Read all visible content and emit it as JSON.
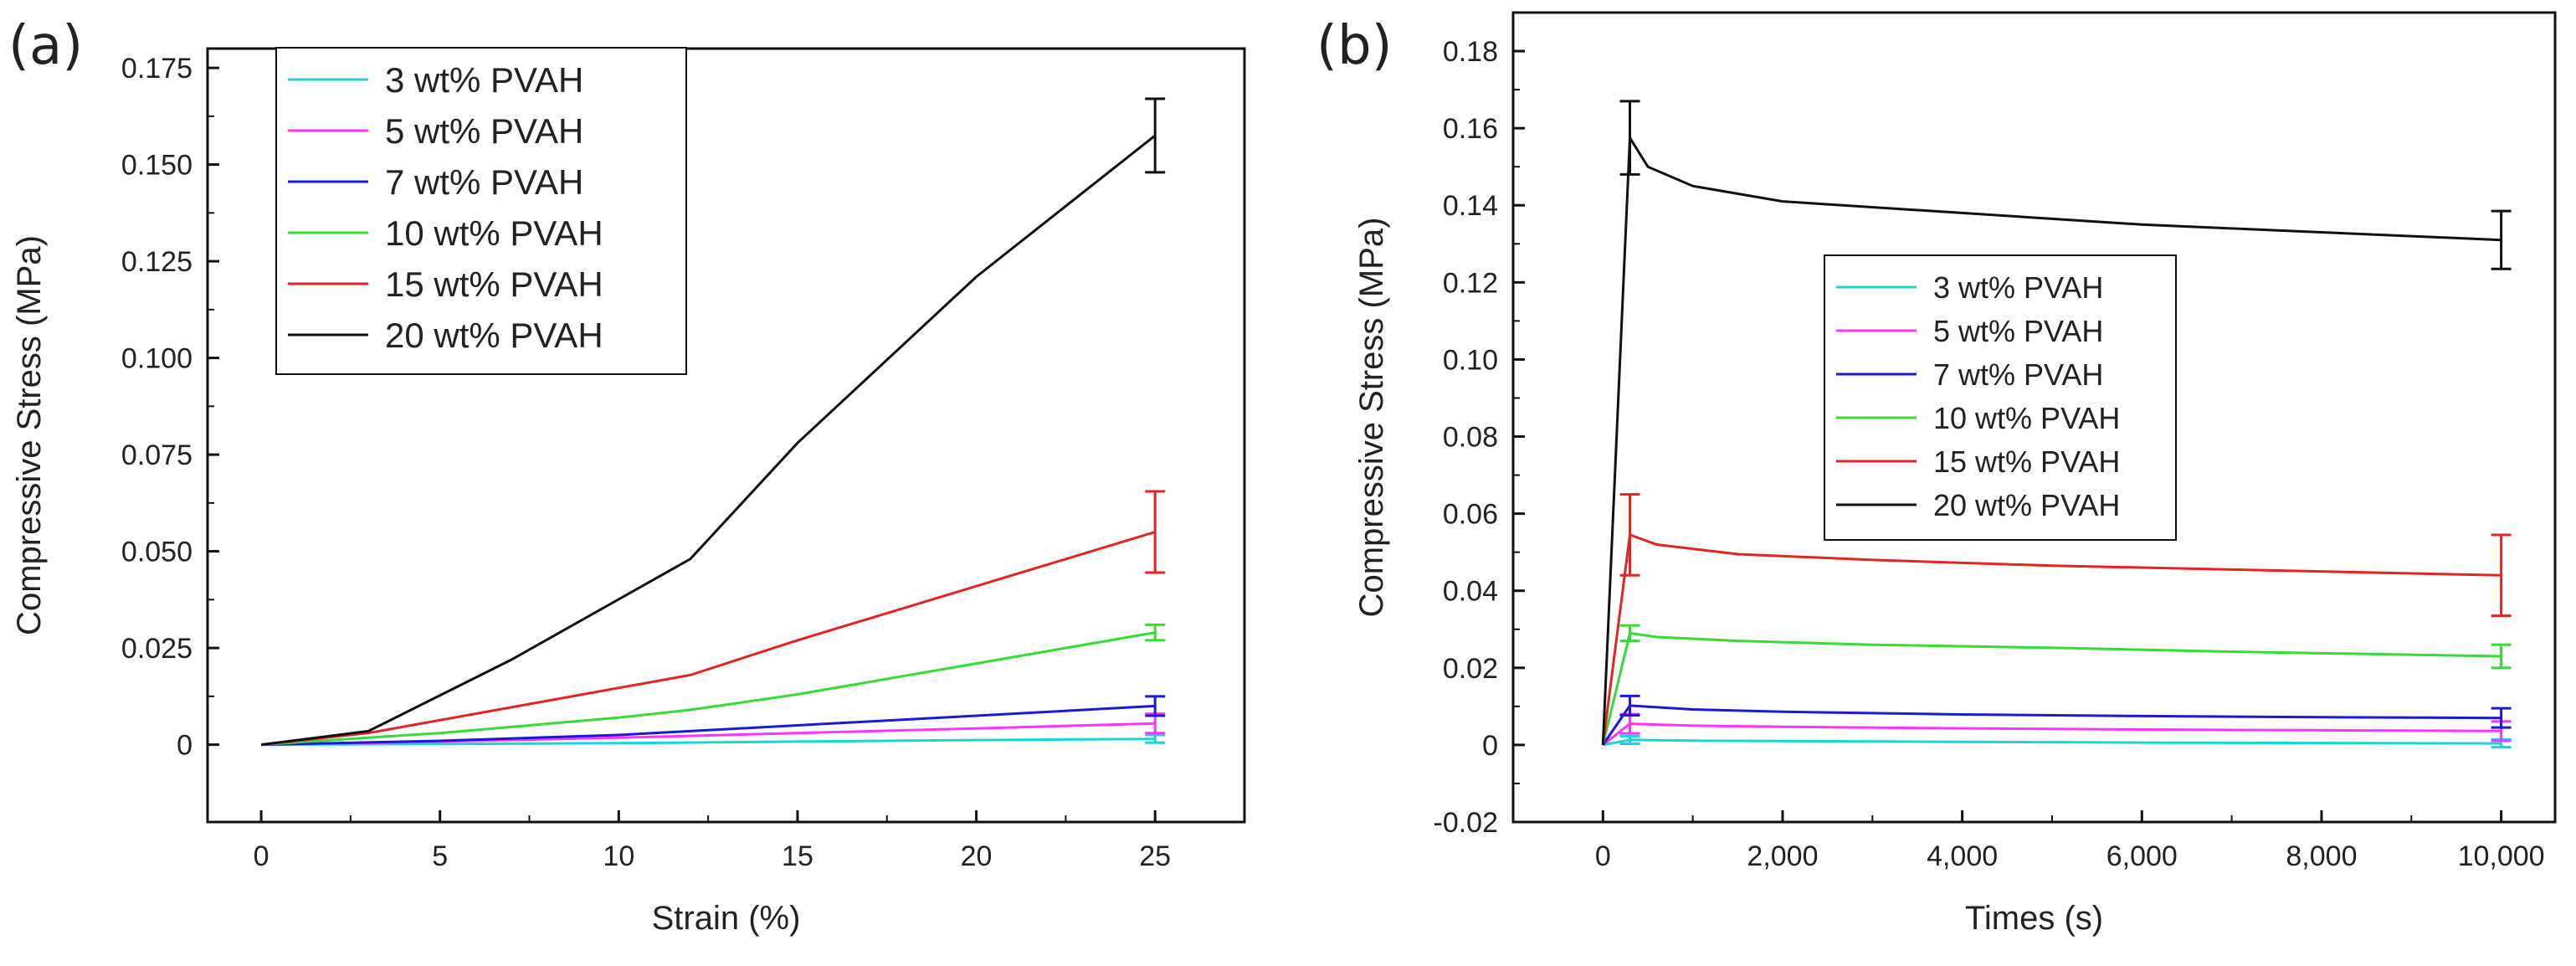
{
  "chart_data": [
    {
      "type": "line",
      "panel_label": "(a)",
      "xlabel": "Strain (%)",
      "ylabel": "Compressive Stress (MPa)",
      "xlim": [
        -1.5,
        27.5
      ],
      "ylim": [
        -0.02,
        0.18
      ],
      "xticks": [
        0,
        5,
        10,
        15,
        20,
        25
      ],
      "xtick_labels": [
        "0",
        "5",
        "10",
        "15",
        "20",
        "25"
      ],
      "yticks": [
        0,
        0.025,
        0.05,
        0.075,
        0.1,
        0.125,
        0.15,
        0.175
      ],
      "ytick_labels": [
        "0",
        "0.025",
        "0.050",
        "0.075",
        "0.100",
        "0.125",
        "0.150",
        "0.175"
      ],
      "legend_position": "top-left",
      "series": [
        {
          "name": "3 wt% PVAH",
          "color": "#19d6d6",
          "x": [
            0,
            5,
            10,
            15,
            20,
            25
          ],
          "y": [
            0,
            0.0002,
            0.0004,
            0.0008,
            0.0012,
            0.0015
          ],
          "error_at_end": 0.001
        },
        {
          "name": "5 wt% PVAH",
          "color": "#ff33ff",
          "x": [
            0,
            5,
            10,
            15,
            20,
            25
          ],
          "y": [
            0,
            0.0008,
            0.0018,
            0.003,
            0.0042,
            0.0055
          ],
          "error_at_end": 0.0025
        },
        {
          "name": "7 wt% PVAH",
          "color": "#1a1ad6",
          "x": [
            0,
            5,
            10,
            15,
            20,
            25
          ],
          "y": [
            0,
            0.001,
            0.0025,
            0.005,
            0.0075,
            0.01
          ],
          "error_at_end": 0.0025
        },
        {
          "name": "10 wt% PVAH",
          "color": "#33dd33",
          "x": [
            0,
            5,
            10,
            12,
            15,
            20,
            25
          ],
          "y": [
            0,
            0.003,
            0.007,
            0.009,
            0.013,
            0.021,
            0.029
          ],
          "error_at_end": 0.002
        },
        {
          "name": "15 wt% PVAH",
          "color": "#e62222",
          "x": [
            0,
            3,
            6,
            9,
            12,
            15,
            20,
            25
          ],
          "y": [
            0,
            0.003,
            0.008,
            0.013,
            0.018,
            0.027,
            0.041,
            0.055
          ],
          "error_at_end": 0.0105
        },
        {
          "name": "20 wt% PVAH",
          "color": "#111111",
          "x": [
            0,
            3,
            7,
            12,
            15,
            20,
            25
          ],
          "y": [
            0,
            0.0035,
            0.022,
            0.048,
            0.078,
            0.121,
            0.1575
          ],
          "error_at_end": 0.0095
        }
      ]
    },
    {
      "type": "line",
      "panel_label": "(b)",
      "xlabel": "Times (s)",
      "ylabel": "Compressive Stress (MPa)",
      "xlim": [
        -1000,
        10600
      ],
      "ylim": [
        -0.02,
        0.19
      ],
      "xticks": [
        0,
        2000,
        4000,
        6000,
        8000,
        10000
      ],
      "xtick_labels": [
        "0",
        "2,000",
        "4,000",
        "6,000",
        "8,000",
        "10,000"
      ],
      "yticks": [
        -0.02,
        0,
        0.02,
        0.04,
        0.06,
        0.08,
        0.1,
        0.12,
        0.14,
        0.16,
        0.18
      ],
      "ytick_labels": [
        "-0.02",
        "0",
        "0.02",
        "0.04",
        "0.06",
        "0.08",
        "0.10",
        "0.12",
        "0.14",
        "0.16",
        "0.18"
      ],
      "legend_position": "center",
      "series": [
        {
          "name": "3 wt% PVAH",
          "color": "#19d6d6",
          "x": [
            0,
            300,
            1000,
            2000,
            4000,
            6000,
            8000,
            10000
          ],
          "y": [
            0,
            0.0013,
            0.0011,
            0.001,
            0.0008,
            0.0006,
            0.0005,
            0.0004
          ],
          "error_peak": 0.001,
          "error_end": 0.001
        },
        {
          "name": "5 wt% PVAH",
          "color": "#ff33ff",
          "x": [
            0,
            300,
            1000,
            2000,
            4000,
            6000,
            8000,
            10000
          ],
          "y": [
            0,
            0.0055,
            0.005,
            0.0047,
            0.0043,
            0.004,
            0.0038,
            0.0036
          ],
          "error_peak": 0.0025,
          "error_end": 0.0025
        },
        {
          "name": "7 wt% PVAH",
          "color": "#1a1ad6",
          "x": [
            0,
            300,
            1000,
            2000,
            4000,
            6000,
            8000,
            10000
          ],
          "y": [
            0,
            0.0102,
            0.0092,
            0.0086,
            0.0079,
            0.0075,
            0.0072,
            0.007
          ],
          "error_peak": 0.0025,
          "error_end": 0.0025
        },
        {
          "name": "10 wt% PVAH",
          "color": "#33dd33",
          "x": [
            0,
            300,
            600,
            1500,
            3000,
            5000,
            7000,
            10000
          ],
          "y": [
            0,
            0.029,
            0.028,
            0.027,
            0.026,
            0.0252,
            0.0242,
            0.023
          ],
          "error_peak": 0.002,
          "error_end": 0.003
        },
        {
          "name": "15 wt% PVAH",
          "color": "#e62222",
          "x": [
            0,
            300,
            600,
            1500,
            3000,
            5000,
            7000,
            10000
          ],
          "y": [
            0,
            0.0545,
            0.052,
            0.0495,
            0.048,
            0.0465,
            0.0455,
            0.044
          ],
          "error_peak": 0.0105,
          "error_end": 0.0105
        },
        {
          "name": "20 wt% PVAH",
          "color": "#111111",
          "x": [
            0,
            300,
            500,
            1000,
            2000,
            4000,
            6000,
            8000,
            10000
          ],
          "y": [
            0,
            0.1575,
            0.15,
            0.145,
            0.141,
            0.138,
            0.135,
            0.133,
            0.131
          ],
          "error_peak": 0.0095,
          "error_end": 0.0075
        }
      ]
    }
  ]
}
